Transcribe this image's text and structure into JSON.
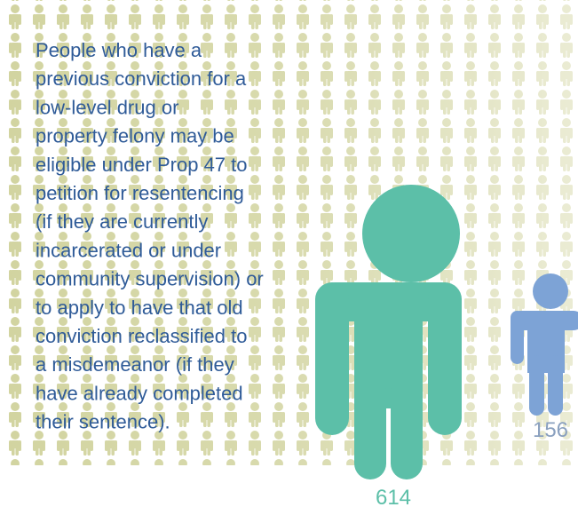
{
  "text": {
    "lines": [
      "People who have a",
      "previous conviction for a",
      "low-level drug or",
      "property felony may be",
      "eligible under Prop 47 to",
      "petition for resentencing",
      "(if they are currently",
      "incarcerated or under",
      "community supervision) or",
      "to apply to have that old",
      "conviction reclassified to",
      "a misdemeanor (if they",
      "have already completed",
      "their sentence)."
    ]
  },
  "figures": [
    {
      "label": "614"
    },
    {
      "label": "156"
    }
  ]
}
